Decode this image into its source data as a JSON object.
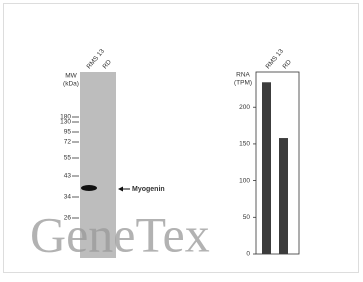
{
  "blot": {
    "mw_label": "MW",
    "mw_unit": "(kDa)",
    "lanes": [
      "RMS 13",
      "RD"
    ],
    "markers": [
      180,
      130,
      95,
      72,
      55,
      43,
      34,
      26
    ],
    "band_label": "Myogenin"
  },
  "chart_data": {
    "type": "bar",
    "y_label": "RNA",
    "y_unit": "(TPM)",
    "categories": [
      "RMS 13",
      "RD"
    ],
    "values": [
      234,
      158
    ],
    "color": "#3c3c3c",
    "ylim": [
      0,
      248
    ],
    "yticks": [
      0,
      50,
      100,
      150,
      200
    ]
  },
  "watermark": "GeneTex"
}
